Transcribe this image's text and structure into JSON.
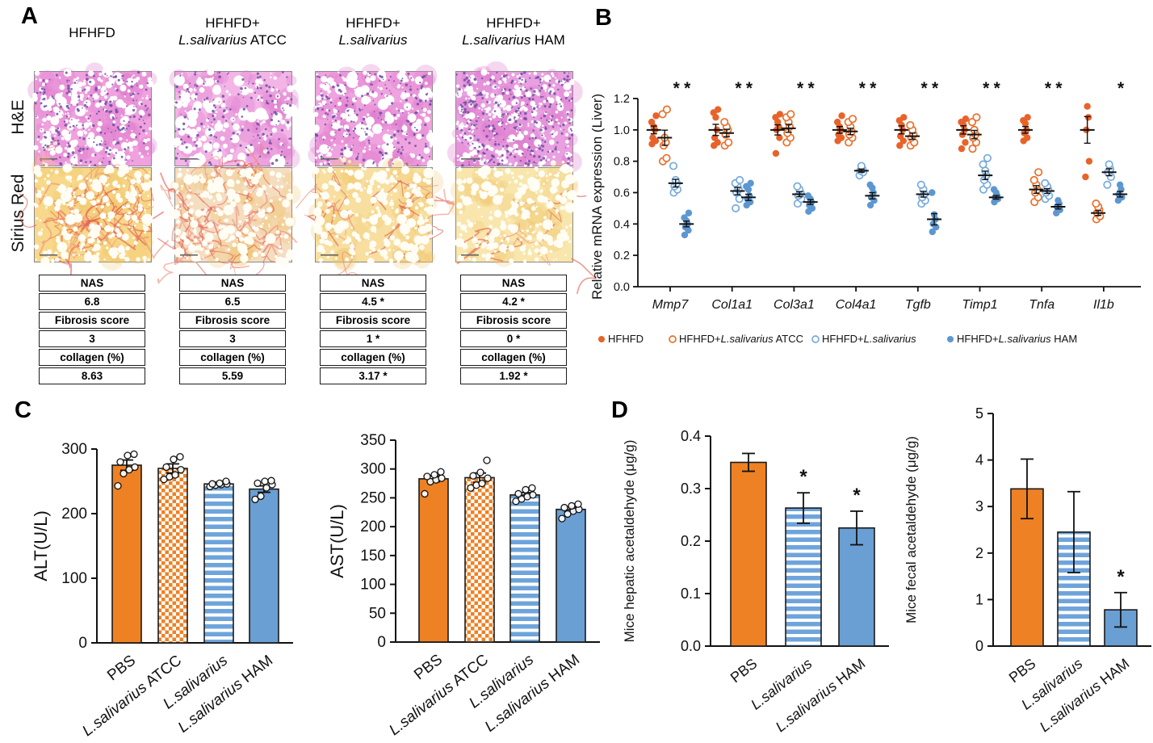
{
  "panel_a": {
    "label": "A",
    "row_labels": [
      "H&E",
      "Sirius Red"
    ],
    "column_titles": [
      [
        "HFHFD"
      ],
      [
        "HFHFD+",
        "L.salivarius ATCC"
      ],
      [
        "HFHFD+",
        "L.salivarius"
      ],
      [
        "HFHFD+",
        "L.salivarius HAM"
      ]
    ],
    "tables": [
      {
        "rows": [
          "NAS",
          "6.8",
          "Fibrosis score",
          "3",
          "collagen (%)",
          "8.63"
        ]
      },
      {
        "rows": [
          "NAS",
          "6.5",
          "Fibrosis score",
          "3",
          "collagen (%)",
          "5.59"
        ]
      },
      {
        "rows": [
          "NAS",
          "4.5 *",
          "Fibrosis score",
          "1 *",
          "collagen (%)",
          "3.17 *"
        ]
      },
      {
        "rows": [
          "NAS",
          "4.2 *",
          "Fibrosis score",
          "0 *",
          "collagen (%)",
          "1.92 *"
        ]
      }
    ],
    "histology": {
      "he_speckle_color": "#6C4FA4",
      "he_blotch_color": "#DE7ACE",
      "sirius_fiber_color": "#E2584C",
      "sirius_fiber_light": "#EE8A77",
      "tiles": [
        {
          "he_base": "#F0A1DE",
          "he_vacuoles": 260,
          "he_rmax": 6.5,
          "he_speckles": 240,
          "sir_base": "#F8D88A",
          "fibers": 50
        },
        {
          "he_base": "#F3B4E6",
          "he_vacuoles": 190,
          "he_rmax": 9.0,
          "he_speckles": 180,
          "sir_base": "#F5DDC0",
          "fibers": 42
        },
        {
          "he_base": "#EFA3DF",
          "he_vacuoles": 240,
          "he_rmax": 7.0,
          "he_speckles": 210,
          "sir_base": "#F8DFA0",
          "fibers": 20
        },
        {
          "he_base": "#E9A0E0",
          "he_vacuoles": 330,
          "he_rmax": 4.5,
          "he_speckles": 320,
          "sir_base": "#F9E6AC",
          "fibers": 9
        }
      ]
    }
  },
  "colors": {
    "orange_fill": "#E8632A",
    "orange_open": "#E8702C",
    "blue_open": "#76AADE",
    "blue_fill": "#5D97D1",
    "bar_orange": "#EE8124",
    "bar_blue": "#699FD3",
    "stripe_blue": "#6EA4DB",
    "axis_black": "#111111"
  },
  "chart_data": [
    {
      "id": "b",
      "type": "scatter",
      "panel_label": "B",
      "ylabel": "Relative mRNA expression (Liver)",
      "ylim": [
        0.0,
        1.2
      ],
      "yticks": [
        "0.0",
        "0.2",
        "0.4",
        "0.6",
        "0.8",
        "1.0",
        "1.2"
      ],
      "genes": [
        "Mmp7",
        "Col1a1",
        "Col3a1",
        "Col4a1",
        "Tgfb",
        "Timp1",
        "Tnfa",
        "Il1b"
      ],
      "groups": [
        {
          "name": "HFHFD",
          "marker": "filled-orange"
        },
        {
          "name": "HFHFD+L.salivarius ATCC",
          "marker": "open-orange"
        },
        {
          "name": "HFHFD+L.salivarius",
          "marker": "open-blue"
        },
        {
          "name": "HFHFD+L.salivarius HAM",
          "marker": "filled-blue"
        }
      ],
      "points": {
        "Mmp7": [
          [
            0.91,
            0.93,
            0.95,
            1.0,
            1.02,
            1.05,
            1.09
          ],
          [
            0.8,
            0.82,
            0.9,
            0.92,
            0.95,
            1.1,
            1.13
          ],
          [
            0.6,
            0.62,
            0.64,
            0.66,
            0.68,
            0.77
          ],
          [
            0.33,
            0.36,
            0.38,
            0.4,
            0.42,
            0.44,
            0.47
          ]
        ],
        "Col1a1": [
          [
            0.9,
            0.92,
            0.95,
            1.0,
            1.08,
            1.11,
            1.13
          ],
          [
            0.9,
            0.92,
            0.97,
            1.0,
            1.02,
            1.05
          ],
          [
            0.5,
            0.56,
            0.6,
            0.62,
            0.64,
            0.66,
            0.68
          ],
          [
            0.52,
            0.54,
            0.56,
            0.58,
            0.62,
            0.64,
            0.66
          ]
        ],
        "Col3a1": [
          [
            0.85,
            0.95,
            1.0,
            1.02,
            1.05,
            1.08,
            1.1
          ],
          [
            0.92,
            0.95,
            0.98,
            1.02,
            1.05,
            1.08,
            1.1
          ],
          [
            0.53,
            0.56,
            0.58,
            0.6,
            0.62,
            0.64
          ],
          [
            0.48,
            0.5,
            0.52,
            0.54,
            0.56,
            0.58
          ]
        ],
        "Col4a1": [
          [
            0.93,
            0.95,
            0.97,
            1.0,
            1.02,
            1.05,
            1.09
          ],
          [
            0.92,
            0.95,
            0.97,
            0.99,
            1.02,
            1.05,
            1.07
          ],
          [
            0.71,
            0.73,
            0.74,
            0.75,
            0.77
          ],
          [
            0.52,
            0.55,
            0.57,
            0.6,
            0.63,
            0.65
          ]
        ],
        "Tgfb": [
          [
            0.9,
            0.93,
            0.96,
            1.0,
            1.03,
            1.06,
            1.08
          ],
          [
            0.9,
            0.92,
            0.95,
            0.97,
            1.0,
            1.03
          ],
          [
            0.53,
            0.55,
            0.57,
            0.59,
            0.62,
            0.65
          ],
          [
            0.35,
            0.38,
            0.4,
            0.43,
            0.46,
            0.6
          ]
        ],
        "Timp1": [
          [
            0.88,
            0.92,
            0.97,
            1.0,
            1.03,
            1.05,
            1.07
          ],
          [
            0.88,
            0.92,
            0.95,
            0.97,
            1.0,
            1.05,
            1.08
          ],
          [
            0.62,
            0.65,
            0.68,
            0.71,
            0.74,
            0.78,
            0.82
          ],
          [
            0.54,
            0.56,
            0.57,
            0.58,
            0.6,
            0.62
          ]
        ],
        "Tnfa": [
          [
            0.93,
            0.95,
            0.98,
            1.0,
            1.04,
            1.06,
            1.08
          ],
          [
            0.54,
            0.57,
            0.6,
            0.62,
            0.65,
            0.68,
            0.73
          ],
          [
            0.56,
            0.58,
            0.6,
            0.62,
            0.64,
            0.66
          ],
          [
            0.47,
            0.49,
            0.51,
            0.53,
            0.55
          ]
        ],
        "Il1b": [
          [
            0.7,
            0.8,
            1.0,
            1.08,
            1.15
          ],
          [
            0.43,
            0.45,
            0.47,
            0.49,
            0.51,
            0.53
          ],
          [
            0.65,
            0.7,
            0.73,
            0.75,
            0.78
          ],
          [
            0.55,
            0.57,
            0.59,
            0.62,
            0.65
          ]
        ]
      },
      "means": {
        "Mmp7": [
          1.0,
          0.95,
          0.66,
          0.4
        ],
        "Col1a1": [
          1.0,
          0.98,
          0.61,
          0.57
        ],
        "Col3a1": [
          1.0,
          1.01,
          0.59,
          0.54
        ],
        "Col4a1": [
          1.0,
          0.99,
          0.74,
          0.58
        ],
        "Tgfb": [
          1.0,
          0.96,
          0.59,
          0.43
        ],
        "Timp1": [
          1.0,
          0.97,
          0.71,
          0.57
        ],
        "Tnfa": [
          1.0,
          0.62,
          0.61,
          0.51
        ],
        "Il1b": [
          1.0,
          0.47,
          0.73,
          0.59
        ]
      },
      "significance": {
        "Mmp7": [
          null,
          null,
          "*",
          "*"
        ],
        "Col1a1": [
          null,
          null,
          "*",
          "*"
        ],
        "Col3a1": [
          null,
          null,
          "*",
          "*"
        ],
        "Col4a1": [
          null,
          null,
          "*",
          "*"
        ],
        "Tgfb": [
          null,
          null,
          "*",
          "*"
        ],
        "Timp1": [
          null,
          null,
          "*",
          "*"
        ],
        "Tnfa": [
          null,
          null,
          "*",
          "*"
        ],
        "Il1b": [
          null,
          null,
          null,
          "*"
        ]
      },
      "legend_position": "bottom"
    },
    {
      "id": "alt",
      "type": "bar",
      "panel_label": "C",
      "ylabel": "ALT(U/L)",
      "ylim": [
        0,
        300
      ],
      "yticks": [
        "0",
        "100",
        "200",
        "300"
      ],
      "categories": [
        "PBS",
        "L.salivarius ATCC",
        "L.salivarius",
        "L.salivarius HAM"
      ],
      "values": [
        275,
        270,
        246,
        238
      ],
      "sem": [
        8,
        7,
        2,
        5
      ],
      "points": [
        [
          243,
          262,
          268,
          272,
          280,
          290,
          292
        ],
        [
          253,
          257,
          260,
          268,
          272,
          284,
          288
        ],
        [
          242,
          244,
          245,
          246,
          246,
          247,
          250
        ],
        [
          222,
          227,
          240,
          245,
          247,
          250,
          251
        ]
      ],
      "significance": [
        null,
        null,
        null,
        null
      ],
      "bar_styles": [
        "solid-orange",
        "checker-orange",
        "stripes-blue",
        "solid-blue"
      ]
    },
    {
      "id": "ast",
      "type": "bar",
      "ylabel": "AST(U/L)",
      "ylim": [
        0,
        350
      ],
      "yticks": [
        "0",
        "50",
        "100",
        "150",
        "200",
        "250",
        "300",
        "350"
      ],
      "categories": [
        "PBS",
        "L.salivarius ATCC",
        "L.salivarius",
        "L.salivarius HAM"
      ],
      "values": [
        283,
        285,
        255,
        230
      ],
      "sem": [
        5,
        8,
        4,
        4
      ],
      "points": [
        [
          257,
          278,
          281,
          284,
          287,
          290,
          295
        ],
        [
          267,
          272,
          275,
          284,
          288,
          294,
          315
        ],
        [
          244,
          248,
          252,
          255,
          257,
          264,
          267
        ],
        [
          214,
          222,
          227,
          230,
          233,
          236,
          239
        ]
      ],
      "significance": [
        null,
        null,
        null,
        null
      ],
      "bar_styles": [
        "solid-orange",
        "checker-orange",
        "stripes-blue",
        "solid-blue"
      ]
    },
    {
      "id": "hep",
      "type": "bar",
      "panel_label": "D",
      "ylabel": "Mice hepatic acetaldehyde (μg/g)",
      "ylim": [
        0,
        0.4
      ],
      "yticks": [
        "0.0",
        "0.1",
        "0.2",
        "0.3",
        "0.4"
      ],
      "categories": [
        "PBS",
        "L.salivarius",
        "L.salivarius HAM"
      ],
      "values": [
        0.35,
        0.263,
        0.225
      ],
      "sem": [
        0.017,
        0.029,
        0.032
      ],
      "points": [],
      "significance": [
        null,
        "*",
        "*"
      ],
      "bar_styles": [
        "solid-orange",
        "stripes-blue",
        "solid-blue"
      ]
    },
    {
      "id": "fec",
      "type": "bar",
      "ylabel": "Mice fecal acetaldehyde (μg/g)",
      "ylim": [
        0,
        5
      ],
      "yticks": [
        "0",
        "1",
        "2",
        "3",
        "4",
        "5"
      ],
      "categories": [
        "PBS",
        "L.salivarius",
        "L.salivarius HAM"
      ],
      "values": [
        3.38,
        2.45,
        0.78
      ],
      "sem": [
        0.64,
        0.87,
        0.37
      ],
      "points": [],
      "significance": [
        null,
        null,
        "*"
      ],
      "bar_styles": [
        "solid-orange",
        "stripes-blue",
        "solid-blue"
      ]
    }
  ]
}
